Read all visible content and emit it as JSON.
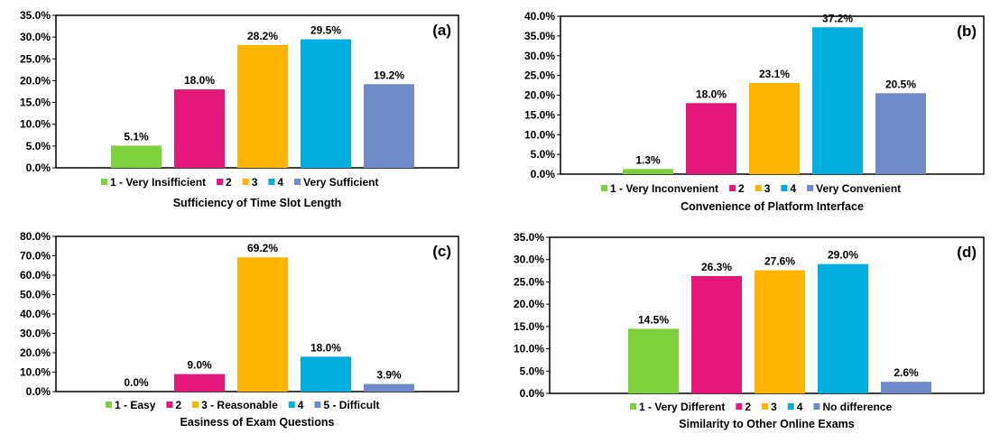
{
  "chart_data": [
    {
      "type": "bar",
      "panel_label": "(a)",
      "xlabel": "Sufficiency of Time Slot Length",
      "categories": [
        "1 - Very Insifficient",
        "2",
        "3",
        "4",
        "Very Sufficient"
      ],
      "values": [
        5.1,
        18.0,
        28.2,
        29.5,
        19.2
      ],
      "value_labels": [
        "5.1%",
        "18.0%",
        "28.2%",
        "29.5%",
        "19.2%"
      ],
      "ylim": [
        0,
        35
      ],
      "yticks": [
        "0.0%",
        "5.0%",
        "10.0%",
        "15.0%",
        "20.0%",
        "25.0%",
        "30.0%",
        "35.0%"
      ],
      "colors": [
        "#7dd13b",
        "#e6177a",
        "#ffb500",
        "#00aee0",
        "#7089c8"
      ],
      "legend": "bottom"
    },
    {
      "type": "bar",
      "panel_label": "(b)",
      "xlabel": "Convenience of Platform Interface",
      "categories": [
        "1 - Very Inconvenient",
        "2",
        "3",
        "4",
        "Very Convenient"
      ],
      "values": [
        1.3,
        18.0,
        23.1,
        37.2,
        20.5
      ],
      "value_labels": [
        "1.3%",
        "18.0%",
        "23.1%",
        "37.2%",
        "20.5%"
      ],
      "ylim": [
        0,
        40
      ],
      "yticks": [
        "0.0%",
        "5.0%",
        "10.0%",
        "15.0%",
        "20.0%",
        "25.0%",
        "30.0%",
        "35.0%",
        "40.0%"
      ],
      "colors": [
        "#7dd13b",
        "#e6177a",
        "#ffb500",
        "#00aee0",
        "#7089c8"
      ],
      "legend": "bottom"
    },
    {
      "type": "bar",
      "panel_label": "(c)",
      "xlabel": "Easiness of Exam Questions",
      "categories": [
        "1 - Easy",
        "2",
        "3 - Reasonable",
        "4",
        "5 - Difficult"
      ],
      "values": [
        0.0,
        9.0,
        69.2,
        18.0,
        3.9
      ],
      "value_labels": [
        "0.0%",
        "9.0%",
        "69.2%",
        "18.0%",
        "3.9%"
      ],
      "ylim": [
        0,
        80
      ],
      "yticks": [
        "0.0%",
        "10.0%",
        "20.0%",
        "30.0%",
        "40.0%",
        "50.0%",
        "60.0%",
        "70.0%",
        "80.0%"
      ],
      "colors": [
        "#7dd13b",
        "#e6177a",
        "#ffb500",
        "#00aee0",
        "#7089c8"
      ],
      "legend": "bottom"
    },
    {
      "type": "bar",
      "panel_label": "(d)",
      "xlabel": "Similarity to Other Online Exams",
      "categories": [
        "1 - Very Different",
        "2",
        "3",
        "4",
        "No difference"
      ],
      "values": [
        14.5,
        26.3,
        27.6,
        29.0,
        2.6
      ],
      "value_labels": [
        "14.5%",
        "26.3%",
        "27.6%",
        "29.0%",
        "2.6%"
      ],
      "ylim": [
        0,
        35
      ],
      "yticks": [
        "0.0%",
        "5.0%",
        "10.0%",
        "15.0%",
        "20.0%",
        "25.0%",
        "30.0%",
        "35.0%"
      ],
      "colors": [
        "#7dd13b",
        "#e6177a",
        "#ffb500",
        "#00aee0",
        "#7089c8"
      ],
      "legend": "bottom"
    }
  ]
}
